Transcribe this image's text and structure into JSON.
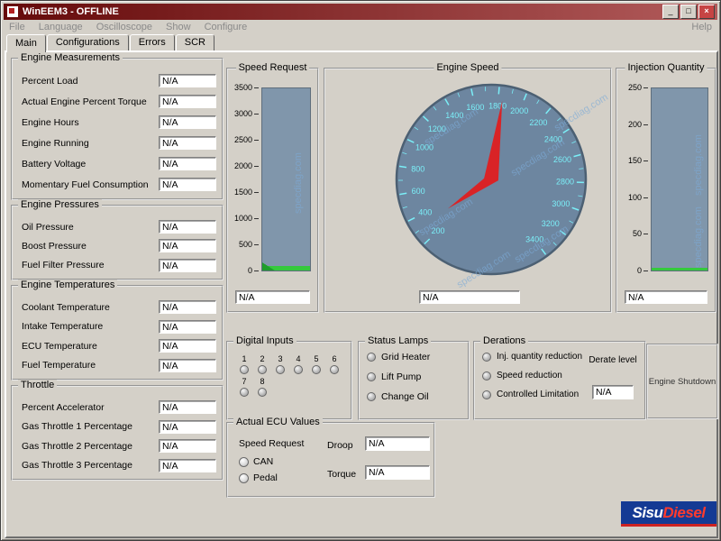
{
  "window": {
    "title": "WinEEM3 - OFFLINE",
    "minimize": "_",
    "maximize": "□",
    "close": "×"
  },
  "menu": {
    "items": [
      "File",
      "Language",
      "Oscilloscope",
      "Show",
      "Configure"
    ],
    "help": "Help"
  },
  "tabs": [
    {
      "label": "Main",
      "active": true
    },
    {
      "label": "Configurations",
      "active": false
    },
    {
      "label": "Errors",
      "active": false
    },
    {
      "label": "SCR",
      "active": false
    }
  ],
  "left_groups": [
    {
      "title": "Engine Measurements",
      "rows": [
        {
          "label": "Percent Load",
          "value": "N/A"
        },
        {
          "label": "Actual Engine Percent Torque",
          "value": "N/A"
        },
        {
          "label": "Engine Hours",
          "value": "N/A"
        },
        {
          "label": "Engine Running",
          "value": "N/A"
        },
        {
          "label": "Battery Voltage",
          "value": "N/A"
        },
        {
          "label": "Momentary Fuel Consumption",
          "value": "N/A"
        }
      ]
    },
    {
      "title": "Engine Pressures",
      "rows": [
        {
          "label": "Oil Pressure",
          "value": "N/A"
        },
        {
          "label": "Boost Pressure",
          "value": "N/A"
        },
        {
          "label": "Fuel Filter Pressure",
          "value": "N/A"
        }
      ]
    },
    {
      "title": "Engine Temperatures",
      "rows": [
        {
          "label": "Coolant Temperature",
          "value": "N/A"
        },
        {
          "label": "Intake Temperature",
          "value": "N/A"
        },
        {
          "label": "ECU Temperature",
          "value": "N/A"
        },
        {
          "label": "Fuel Temperature",
          "value": "N/A"
        }
      ]
    },
    {
      "title": "Throttle",
      "rows": [
        {
          "label": "Percent Accelerator",
          "value": "N/A"
        },
        {
          "label": "Gas Throttle 1 Percentage",
          "value": "N/A"
        },
        {
          "label": "Gas Throttle 2 Percentage",
          "value": "N/A"
        },
        {
          "label": "Gas Throttle 3 Percentage",
          "value": "N/A"
        }
      ]
    }
  ],
  "gauges": {
    "speed_request": {
      "title": "Speed Request",
      "ticks": [
        3500,
        3000,
        2500,
        2000,
        1500,
        1000,
        500,
        0
      ],
      "min": 0,
      "max": 3500,
      "value": "N/A"
    },
    "engine_speed": {
      "title": "Engine Speed",
      "labels": [
        200,
        400,
        600,
        800,
        1000,
        1200,
        1400,
        1600,
        1800,
        2000,
        2200,
        2400,
        2600,
        2800,
        3000,
        3200,
        3400
      ],
      "value": "N/A"
    },
    "injection_quantity": {
      "title": "Injection Quantity",
      "ticks": [
        250,
        200,
        150,
        100,
        50,
        0
      ],
      "min": 0,
      "max": 250,
      "value": "N/A"
    }
  },
  "digital_inputs": {
    "title": "Digital Inputs",
    "channels": [
      "1",
      "2",
      "3",
      "4",
      "5",
      "6",
      "7",
      "8"
    ]
  },
  "status_lamps": {
    "title": "Status Lamps",
    "lamps": [
      "Grid Heater",
      "Lift Pump",
      "Change Oil"
    ]
  },
  "derations": {
    "title": "Derations",
    "lamps": [
      "Inj. quantity reduction",
      "Speed reduction",
      "Controlled Limitation"
    ],
    "derate_level_label": "Derate level",
    "derate_level_value": "N/A"
  },
  "engine_shutdown_label": "Engine Shutdown",
  "actual_ecu": {
    "title": "Actual ECU Values",
    "speed_request_label": "Speed Request",
    "sources": [
      "CAN",
      "Pedal"
    ],
    "droop_label": "Droop",
    "droop_value": "N/A",
    "torque_label": "Torque",
    "torque_value": "N/A"
  },
  "logo": {
    "part1": "Sisu",
    "part2": "Diesel"
  },
  "watermark_text": "specdiag.com",
  "colors": {
    "titlebar_start": "#650a0a",
    "titlebar_end": "#b25b5b",
    "gauge_fill": "#8096ab",
    "dial_fill": "#6d86a0",
    "tick_cyan": "#7beef7",
    "needle_red": "#e31b1b",
    "green": "#35c93d",
    "watermark": "rgba(125,170,215,0.65)",
    "logo_blue": "#143a94",
    "logo_red": "#ff3b2e"
  }
}
